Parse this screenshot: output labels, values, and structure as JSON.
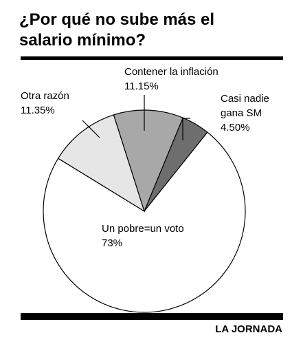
{
  "title_line1": "¿Por qué no sube más el",
  "title_line2": "salario mínimo?",
  "source": "LA JORNADA",
  "chart_data": {
    "type": "pie",
    "title": "¿Por qué no sube más el salario mínimo?",
    "slices": [
      {
        "label": "Un pobre=un voto",
        "value": 73,
        "value_text": "73%",
        "color": "#ffffff"
      },
      {
        "label": "Otra razón",
        "value": 11.35,
        "value_text": "11.35%",
        "color": "#e6e6e6"
      },
      {
        "label": "Contener la inflación",
        "value": 11.15,
        "value_text": "11.15%",
        "color": "#a8a8a8"
      },
      {
        "label": "Casi nadie gana SM",
        "value": 4.5,
        "value_text": "4.50%",
        "color": "#6e6e6e"
      }
    ]
  }
}
